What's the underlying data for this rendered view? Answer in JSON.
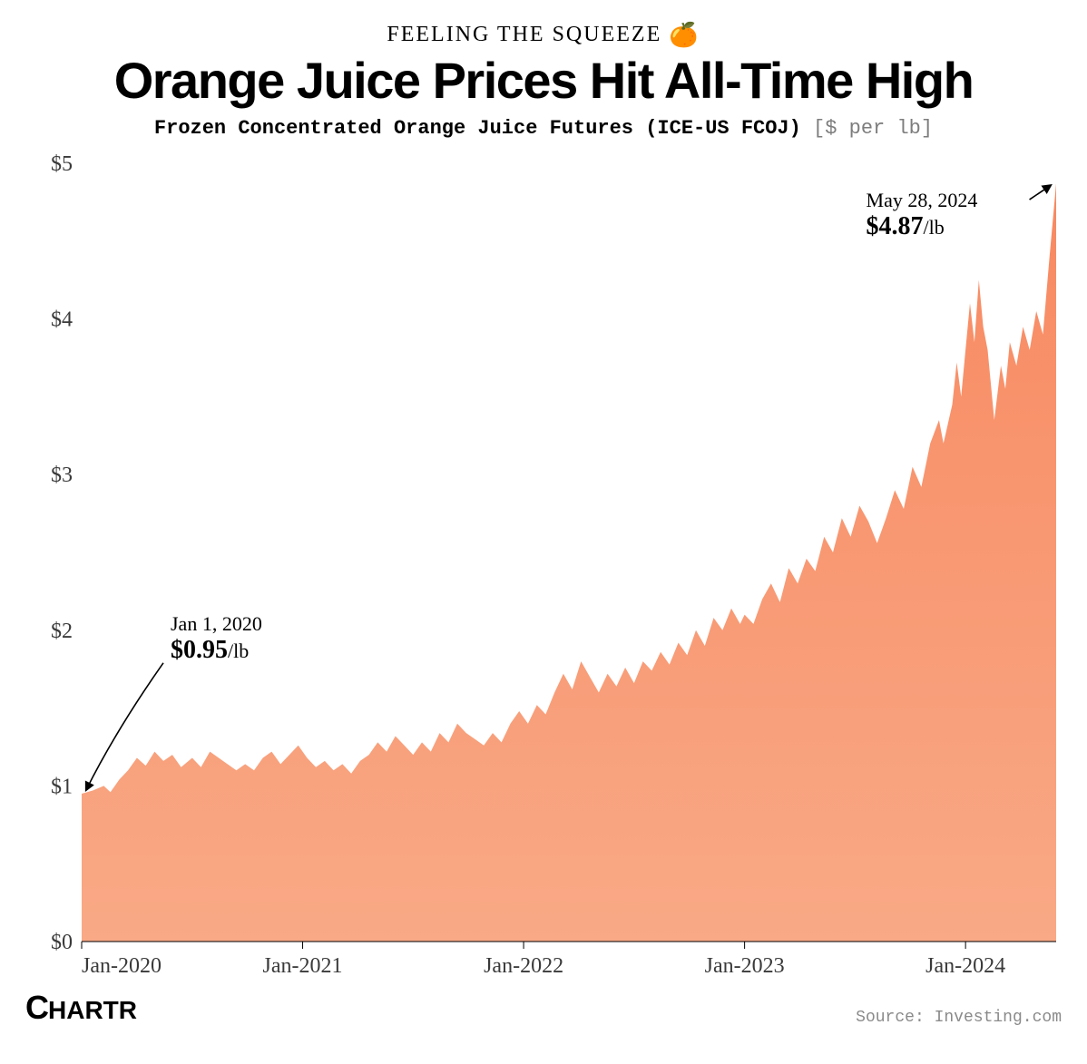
{
  "header": {
    "kicker": "FEELING THE SQUEEZE",
    "kicker_emoji": "🍊",
    "headline": "Orange Juice Prices Hit All-Time High",
    "subtitle": "Frozen Concentrated Orange Juice Futures (ICE-US FCOJ)",
    "unit_label": "[$ per lb]"
  },
  "chart": {
    "type": "area",
    "background_color": "#ffffff",
    "fill_color": "#f78961",
    "fill_color_light": "#f9a986",
    "axis_color": "#000000",
    "tick_label_color": "#3a3a3a",
    "tick_font_family": "Georgia, serif",
    "tick_fontsize": 24,
    "y_axis": {
      "min": 0,
      "max": 5,
      "ticks": [
        0,
        1,
        2,
        3,
        4,
        5
      ],
      "tick_labels": [
        "$0",
        "$1",
        "$2",
        "$3",
        "$4",
        "$5"
      ]
    },
    "x_axis": {
      "min": 0,
      "max": 4.41,
      "ticks": [
        0,
        1,
        2,
        3,
        4
      ],
      "tick_labels": [
        "Jan-2020",
        "Jan-2021",
        "Jan-2022",
        "Jan-2023",
        "Jan-2024"
      ]
    },
    "annotations": {
      "start": {
        "date": "Jan 1, 2020",
        "price_display": "$0.95",
        "unit_display": "/lb",
        "data_x": 0,
        "data_y": 0.95
      },
      "end": {
        "date": "May 28, 2024",
        "price_display": "$4.87",
        "unit_display": "/lb",
        "data_x": 4.41,
        "data_y": 4.87
      },
      "label_fontsize_date": 22,
      "label_fontsize_price": 28
    },
    "series": [
      {
        "x": 0.0,
        "y": 0.95
      },
      {
        "x": 0.05,
        "y": 0.97
      },
      {
        "x": 0.1,
        "y": 1.0
      },
      {
        "x": 0.13,
        "y": 0.96
      },
      {
        "x": 0.17,
        "y": 1.04
      },
      {
        "x": 0.21,
        "y": 1.1
      },
      {
        "x": 0.25,
        "y": 1.18
      },
      {
        "x": 0.29,
        "y": 1.13
      },
      {
        "x": 0.33,
        "y": 1.22
      },
      {
        "x": 0.37,
        "y": 1.16
      },
      {
        "x": 0.41,
        "y": 1.2
      },
      {
        "x": 0.45,
        "y": 1.12
      },
      {
        "x": 0.5,
        "y": 1.18
      },
      {
        "x": 0.54,
        "y": 1.12
      },
      {
        "x": 0.58,
        "y": 1.22
      },
      {
        "x": 0.62,
        "y": 1.18
      },
      {
        "x": 0.66,
        "y": 1.14
      },
      {
        "x": 0.7,
        "y": 1.1
      },
      {
        "x": 0.74,
        "y": 1.14
      },
      {
        "x": 0.78,
        "y": 1.1
      },
      {
        "x": 0.82,
        "y": 1.18
      },
      {
        "x": 0.86,
        "y": 1.22
      },
      {
        "x": 0.9,
        "y": 1.14
      },
      {
        "x": 0.94,
        "y": 1.2
      },
      {
        "x": 0.98,
        "y": 1.26
      },
      {
        "x": 1.02,
        "y": 1.18
      },
      {
        "x": 1.06,
        "y": 1.12
      },
      {
        "x": 1.1,
        "y": 1.16
      },
      {
        "x": 1.14,
        "y": 1.1
      },
      {
        "x": 1.18,
        "y": 1.14
      },
      {
        "x": 1.22,
        "y": 1.08
      },
      {
        "x": 1.26,
        "y": 1.16
      },
      {
        "x": 1.3,
        "y": 1.2
      },
      {
        "x": 1.34,
        "y": 1.28
      },
      {
        "x": 1.38,
        "y": 1.22
      },
      {
        "x": 1.42,
        "y": 1.32
      },
      {
        "x": 1.46,
        "y": 1.26
      },
      {
        "x": 1.5,
        "y": 1.2
      },
      {
        "x": 1.54,
        "y": 1.28
      },
      {
        "x": 1.58,
        "y": 1.22
      },
      {
        "x": 1.62,
        "y": 1.34
      },
      {
        "x": 1.66,
        "y": 1.28
      },
      {
        "x": 1.7,
        "y": 1.4
      },
      {
        "x": 1.74,
        "y": 1.34
      },
      {
        "x": 1.78,
        "y": 1.3
      },
      {
        "x": 1.82,
        "y": 1.26
      },
      {
        "x": 1.86,
        "y": 1.34
      },
      {
        "x": 1.9,
        "y": 1.28
      },
      {
        "x": 1.94,
        "y": 1.4
      },
      {
        "x": 1.98,
        "y": 1.48
      },
      {
        "x": 2.02,
        "y": 1.4
      },
      {
        "x": 2.06,
        "y": 1.52
      },
      {
        "x": 2.1,
        "y": 1.46
      },
      {
        "x": 2.14,
        "y": 1.6
      },
      {
        "x": 2.18,
        "y": 1.72
      },
      {
        "x": 2.22,
        "y": 1.62
      },
      {
        "x": 2.26,
        "y": 1.8
      },
      {
        "x": 2.3,
        "y": 1.7
      },
      {
        "x": 2.34,
        "y": 1.6
      },
      {
        "x": 2.38,
        "y": 1.72
      },
      {
        "x": 2.42,
        "y": 1.64
      },
      {
        "x": 2.46,
        "y": 1.76
      },
      {
        "x": 2.5,
        "y": 1.66
      },
      {
        "x": 2.54,
        "y": 1.8
      },
      {
        "x": 2.58,
        "y": 1.74
      },
      {
        "x": 2.62,
        "y": 1.86
      },
      {
        "x": 2.66,
        "y": 1.78
      },
      {
        "x": 2.7,
        "y": 1.92
      },
      {
        "x": 2.74,
        "y": 1.84
      },
      {
        "x": 2.78,
        "y": 2.0
      },
      {
        "x": 2.82,
        "y": 1.9
      },
      {
        "x": 2.86,
        "y": 2.08
      },
      {
        "x": 2.9,
        "y": 2.0
      },
      {
        "x": 2.94,
        "y": 2.14
      },
      {
        "x": 2.98,
        "y": 2.04
      },
      {
        "x": 3.0,
        "y": 2.1
      },
      {
        "x": 3.04,
        "y": 2.04
      },
      {
        "x": 3.08,
        "y": 2.2
      },
      {
        "x": 3.12,
        "y": 2.3
      },
      {
        "x": 3.16,
        "y": 2.18
      },
      {
        "x": 3.2,
        "y": 2.4
      },
      {
        "x": 3.24,
        "y": 2.3
      },
      {
        "x": 3.28,
        "y": 2.46
      },
      {
        "x": 3.32,
        "y": 2.38
      },
      {
        "x": 3.36,
        "y": 2.6
      },
      {
        "x": 3.4,
        "y": 2.5
      },
      {
        "x": 3.44,
        "y": 2.72
      },
      {
        "x": 3.48,
        "y": 2.6
      },
      {
        "x": 3.52,
        "y": 2.8
      },
      {
        "x": 3.56,
        "y": 2.7
      },
      {
        "x": 3.6,
        "y": 2.56
      },
      {
        "x": 3.64,
        "y": 2.72
      },
      {
        "x": 3.68,
        "y": 2.9
      },
      {
        "x": 3.72,
        "y": 2.78
      },
      {
        "x": 3.76,
        "y": 3.05
      },
      {
        "x": 3.8,
        "y": 2.92
      },
      {
        "x": 3.84,
        "y": 3.2
      },
      {
        "x": 3.88,
        "y": 3.35
      },
      {
        "x": 3.9,
        "y": 3.2
      },
      {
        "x": 3.94,
        "y": 3.45
      },
      {
        "x": 3.96,
        "y": 3.72
      },
      {
        "x": 3.98,
        "y": 3.5
      },
      {
        "x": 4.0,
        "y": 3.8
      },
      {
        "x": 4.02,
        "y": 4.1
      },
      {
        "x": 4.04,
        "y": 3.85
      },
      {
        "x": 4.06,
        "y": 4.25
      },
      {
        "x": 4.08,
        "y": 3.95
      },
      {
        "x": 4.1,
        "y": 3.8
      },
      {
        "x": 4.13,
        "y": 3.35
      },
      {
        "x": 4.16,
        "y": 3.7
      },
      {
        "x": 4.18,
        "y": 3.55
      },
      {
        "x": 4.2,
        "y": 3.85
      },
      {
        "x": 4.23,
        "y": 3.7
      },
      {
        "x": 4.26,
        "y": 3.95
      },
      {
        "x": 4.29,
        "y": 3.8
      },
      {
        "x": 4.32,
        "y": 4.05
      },
      {
        "x": 4.35,
        "y": 3.9
      },
      {
        "x": 4.38,
        "y": 4.4
      },
      {
        "x": 4.41,
        "y": 4.87
      }
    ]
  },
  "footer": {
    "logo_main": "C",
    "logo_rest": "HARTR",
    "source": "Source: Investing.com"
  }
}
